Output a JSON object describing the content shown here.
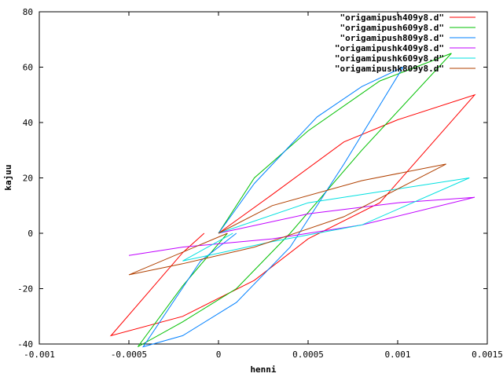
{
  "chart_data": {
    "type": "line",
    "title": "",
    "xlabel": "henni",
    "ylabel": "kajuu",
    "xlim": [
      -0.001,
      0.0015
    ],
    "ylim": [
      -40,
      80
    ],
    "xticks": [
      -0.001,
      -0.0005,
      0,
      0.0005,
      0.001,
      0.0015
    ],
    "xtick_labels": [
      "-0.001",
      "-0.0005",
      "0",
      "0.0005",
      "0.001",
      "0.0015"
    ],
    "yticks": [
      -40,
      -20,
      0,
      20,
      40,
      60,
      80
    ],
    "ytick_labels": [
      "-40",
      "-20",
      "0",
      "20",
      "40",
      "60",
      "80"
    ],
    "grid": false,
    "legend_position": "top-right",
    "series": [
      {
        "name": "\"origamipush409y8.d\"",
        "color": "#ff0000",
        "points": [
          [
            0,
            0
          ],
          [
            0.0003,
            14
          ],
          [
            0.0007,
            33
          ],
          [
            0.001,
            41
          ],
          [
            0.00143,
            50
          ],
          [
            0.0009,
            11
          ],
          [
            0.0005,
            -2
          ],
          [
            0.0002,
            -17
          ],
          [
            -0.0002,
            -30
          ],
          [
            -0.0006,
            -37
          ],
          [
            -0.0002,
            -7
          ],
          [
            -8e-05,
            0
          ]
        ]
      },
      {
        "name": "\"origamipush609y8.d\"",
        "color": "#00c000",
        "points": [
          [
            0,
            0
          ],
          [
            0.0002,
            20
          ],
          [
            0.0005,
            37
          ],
          [
            0.0009,
            55
          ],
          [
            0.0013,
            65
          ],
          [
            0.0008,
            30
          ],
          [
            0.0004,
            0
          ],
          [
            0.0001,
            -20
          ],
          [
            -0.0002,
            -32
          ],
          [
            -0.00045,
            -41
          ],
          [
            -0.0002,
            -19
          ],
          [
            5e-05,
            0
          ]
        ]
      },
      {
        "name": "\"origamipush809y8.d\"",
        "color": "#0080ff",
        "points": [
          [
            0,
            0
          ],
          [
            0.0002,
            18
          ],
          [
            0.00055,
            42
          ],
          [
            0.0008,
            53
          ],
          [
            0.00103,
            60
          ],
          [
            0.0007,
            25
          ],
          [
            0.0004,
            -5
          ],
          [
            0.0001,
            -25
          ],
          [
            -0.0002,
            -37
          ],
          [
            -0.00042,
            -41
          ],
          [
            -0.0001,
            -10
          ],
          [
            0.0001,
            0
          ]
        ]
      },
      {
        "name": "\"origamipushk409y8.d\"",
        "color": "#c000ff",
        "points": [
          [
            0,
            0
          ],
          [
            0.0005,
            7
          ],
          [
            0.001,
            11
          ],
          [
            0.00143,
            13
          ],
          [
            0.0008,
            3
          ],
          [
            0.0003,
            -2
          ],
          [
            -0.0002,
            -5
          ],
          [
            -0.0005,
            -8
          ]
        ]
      },
      {
        "name": "\"origamipushk609y8.d\"",
        "color": "#00e0e0",
        "points": [
          [
            0,
            0
          ],
          [
            0.0005,
            11
          ],
          [
            0.001,
            16
          ],
          [
            0.0014,
            20
          ],
          [
            0.0008,
            3
          ],
          [
            0.0003,
            -3
          ],
          [
            -0.0002,
            -10
          ],
          [
            8e-05,
            0
          ]
        ]
      },
      {
        "name": "\"origamipushk809y8.d\"",
        "color": "#b04000",
        "points": [
          [
            0,
            0
          ],
          [
            0.0003,
            10
          ],
          [
            0.0008,
            19
          ],
          [
            0.00127,
            25
          ],
          [
            0.0007,
            6
          ],
          [
            0.0002,
            -5
          ],
          [
            -0.0002,
            -11
          ],
          [
            -0.0005,
            -15
          ],
          [
            5e-05,
            0
          ]
        ]
      }
    ]
  }
}
